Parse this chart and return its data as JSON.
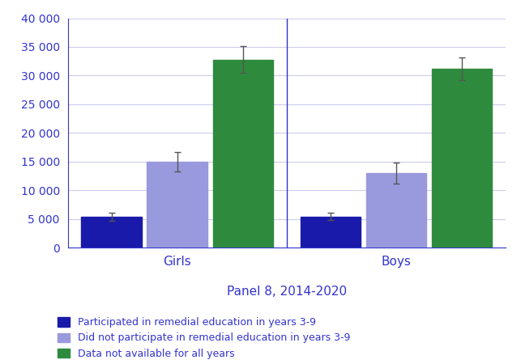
{
  "groups": [
    "Girls",
    "Boys"
  ],
  "categories": [
    "Participated in remedial education in years 3-9",
    "Did not participate in remedial education in years 3-9",
    "Data not available for all years"
  ],
  "values": {
    "Girls": [
      5300,
      14900,
      32800
    ],
    "Boys": [
      5400,
      13000,
      31200
    ]
  },
  "errors": {
    "Girls": [
      700,
      1700,
      2300
    ],
    "Boys": [
      600,
      1800,
      2000
    ]
  },
  "colors": [
    "#1a1aaa",
    "#9999dd",
    "#2e8b3e"
  ],
  "xlabel": "Panel 8, 2014-2020",
  "xlabel_color": "#3333cc",
  "axis_label_color": "#3333cc",
  "tick_color": "#3333cc",
  "grid_color": "#ccccee",
  "ylim": [
    0,
    40000
  ],
  "yticks": [
    0,
    5000,
    10000,
    15000,
    20000,
    25000,
    30000,
    35000,
    40000
  ],
  "ytick_labels": [
    "0",
    "5 000",
    "10 000",
    "15 000",
    "20 000",
    "25 000",
    "30 000",
    "35 000",
    "40 000"
  ],
  "background_color": "#ffffff",
  "error_color": "#555555",
  "legend_labels": [
    "Participated in remedial education in years 3-9",
    "Did not participate in remedial education in years 3-9",
    "Data not available for all years"
  ],
  "group_centers": [
    1.0,
    3.0
  ],
  "bar_width": 0.55,
  "offsets": [
    -0.6,
    0.0,
    0.6
  ],
  "divider_x": 2.0,
  "xlim": [
    0.0,
    4.0
  ]
}
